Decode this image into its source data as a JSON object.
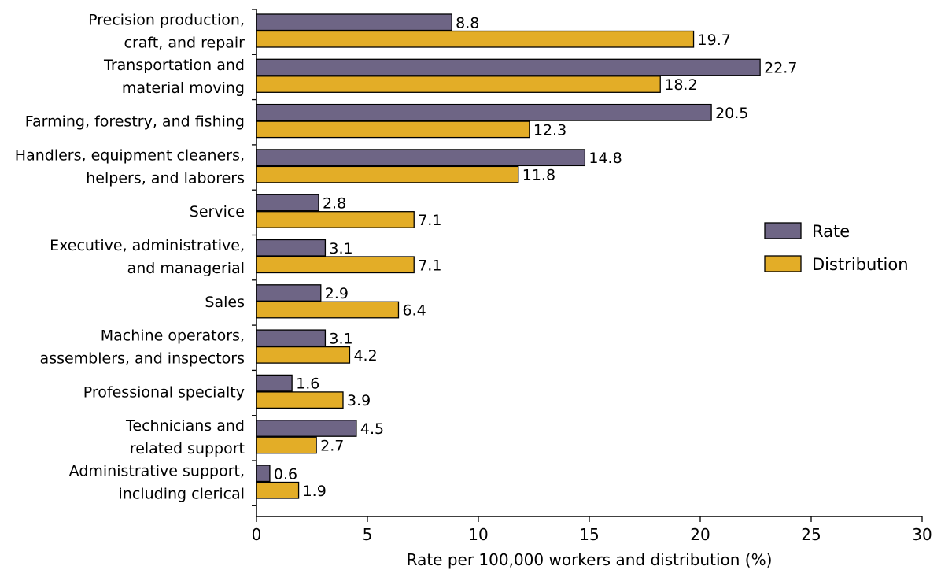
{
  "chart_data": {
    "type": "bar",
    "orientation": "horizontal",
    "categories": [
      [
        "Precision production,",
        "craft, and repair"
      ],
      [
        "Transportation and",
        "material moving"
      ],
      [
        "Farming, forestry, and fishing"
      ],
      [
        "Handlers, equipment cleaners,",
        "helpers, and laborers"
      ],
      [
        "Service"
      ],
      [
        "Executive, administrative,",
        "and managerial"
      ],
      [
        "Sales"
      ],
      [
        "Machine operators,",
        "assemblers, and inspectors"
      ],
      [
        "Professional specialty"
      ],
      [
        "Technicians and",
        "related support"
      ],
      [
        "Administrative support,",
        "including clerical"
      ]
    ],
    "series": [
      {
        "name": "Rate",
        "color": "#6e6585",
        "values": [
          8.8,
          22.7,
          20.5,
          14.8,
          2.8,
          3.1,
          2.9,
          3.1,
          1.6,
          4.5,
          0.6
        ]
      },
      {
        "name": "Distribution",
        "color": "#e3ad27",
        "values": [
          19.7,
          18.2,
          12.3,
          11.8,
          7.1,
          7.1,
          6.4,
          4.2,
          3.9,
          2.7,
          1.9
        ]
      }
    ],
    "value_labels": [
      [
        "8.8",
        "22.7",
        "20.5",
        "14.8",
        "2.8",
        "3.1",
        "2.9",
        "3.1",
        "1.6",
        "4.5",
        "0.6"
      ],
      [
        "19.7",
        "18.2",
        "12.3",
        "11.8",
        "7.1",
        "7.1",
        "6.4",
        "4.2",
        "3.9",
        "2.7",
        "1.9"
      ]
    ],
    "xlim": [
      0,
      30
    ],
    "xticks": [
      0,
      5,
      10,
      15,
      20,
      25,
      30
    ],
    "xtick_labels": [
      "0",
      "5",
      "10",
      "15",
      "20",
      "25",
      "30"
    ],
    "xlabel": "Rate per 100,000 workers and distribution (%)",
    "ylabel": "",
    "title": "",
    "grid": false,
    "legend_position": "right"
  }
}
